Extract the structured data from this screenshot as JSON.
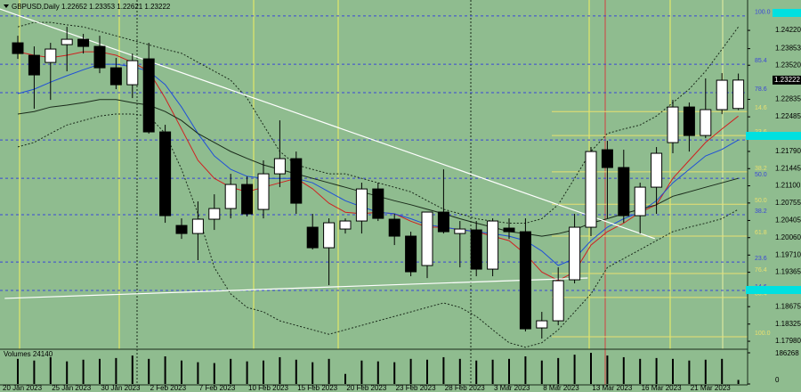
{
  "chart_data": {
    "type": "candlestick",
    "title": "GBPUSD,Daily  1.22652 1.23353 1.22621 1.23222",
    "categories": [
      "20 Jan 2023",
      null,
      null,
      "25 Jan 2023",
      null,
      null,
      "30 Jan 2023",
      null,
      null,
      "2 Feb 2023",
      null,
      null,
      "7 Feb 2023",
      null,
      null,
      "10 Feb 2023",
      null,
      null,
      "15 Feb 2023",
      null,
      null,
      "20 Feb 2023",
      null,
      null,
      "23 Feb 2023",
      null,
      null,
      "28 Feb 2023",
      null,
      null,
      "3 Mar 2023",
      null,
      null,
      "8 Mar 2023",
      null,
      null,
      "13 Mar 2023",
      null,
      null,
      "16 Mar 2023",
      null,
      null,
      "21 Mar 2023",
      null,
      null
    ],
    "open": [
      1.2397,
      1.23719,
      1.23576,
      1.23934,
      1.24041,
      1.23898,
      1.23469,
      1.23129,
      1.23648,
      1.22182,
      1.20304,
      1.20143,
      1.2043,
      1.20644,
      1.21127,
      1.20626,
      1.21341,
      1.21645,
      1.20269,
      1.19857,
      1.20233,
      1.20394,
      1.21037,
      1.2043,
      1.2009,
      1.195,
      1.20573,
      1.20143,
      1.20215,
      1.19428,
      1.20251,
      1.20179,
      1.18248,
      1.18391,
      1.19214,
      1.20269,
      1.21824,
      1.21467,
      1.20501,
      1.21073,
      1.21967,
      1.22682,
      1.2211,
      1.22629,
      1.22652
    ],
    "high": [
      1.24113,
      1.23898,
      1.2397,
      1.24292,
      1.24149,
      1.24113,
      1.23666,
      1.23755,
      1.2397,
      1.22325,
      1.20447,
      1.20787,
      1.2093,
      1.21341,
      1.21288,
      1.2161,
      1.22414,
      1.21788,
      1.20537,
      1.20447,
      1.20447,
      1.21163,
      1.21163,
      1.20537,
      1.20179,
      1.20573,
      1.21431,
      1.20394,
      1.20394,
      1.20447,
      1.20447,
      1.20447,
      1.1857,
      1.19464,
      1.20537,
      1.21878,
      1.22003,
      1.21824,
      1.21163,
      1.21878,
      1.22825,
      1.22772,
      1.23255,
      1.23362,
      1.23353
    ],
    "low": [
      1.23648,
      1.22647,
      1.22825,
      1.23398,
      1.23755,
      1.23362,
      1.2304,
      1.22861,
      1.22146,
      1.20358,
      1.20036,
      1.19607,
      1.20215,
      1.20447,
      1.20483,
      1.20447,
      1.21073,
      1.20537,
      1.19822,
      1.19106,
      1.20143,
      1.20143,
      1.20394,
      1.19911,
      1.19285,
      1.19249,
      1.20143,
      1.19464,
      1.19285,
      1.19285,
      1.20036,
      1.18177,
      1.18034,
      1.18302,
      1.19142,
      1.2009,
      1.20447,
      1.20358,
      1.20143,
      1.20537,
      1.21753,
      1.21788,
      1.22057,
      1.22539,
      1.22621
    ],
    "close": [
      1.23755,
      1.23326,
      1.23845,
      1.24041,
      1.23898,
      1.23469,
      1.23129,
      1.23612,
      1.22182,
      1.20501,
      1.20143,
      1.2043,
      1.20644,
      1.21127,
      1.20537,
      1.21341,
      1.21645,
      1.20751,
      1.19857,
      1.20358,
      1.20394,
      1.21037,
      1.20447,
      1.2009,
      1.19375,
      1.20573,
      1.20179,
      1.20233,
      1.19428,
      1.20394,
      1.20179,
      1.1823,
      1.18391,
      1.19196,
      1.20269,
      1.21788,
      1.21467,
      1.20501,
      1.21073,
      1.21753,
      1.22682,
      1.2211,
      1.22629,
      1.23219,
      1.23222
    ],
    "up_color": "#ffffff",
    "down_color": "#000000",
    "indicators": [
      {
        "color": "#d02020",
        "style": "solid",
        "values": [
          1.2379,
          1.2372,
          1.2367,
          1.2372,
          1.2379,
          1.2379,
          1.2372,
          1.2358,
          1.234,
          1.2286,
          1.2224,
          1.2161,
          1.2125,
          1.2107,
          1.2098,
          1.2107,
          1.2116,
          1.2125,
          1.2104,
          1.2075,
          1.2057,
          1.2054,
          1.2057,
          1.2054,
          1.2039,
          1.2027,
          1.2027,
          1.2022,
          1.2018,
          1.2009,
          1.2,
          1.1973,
          1.1937,
          1.192,
          1.1937,
          1.1991,
          1.2018,
          1.2035,
          1.2057,
          1.2072,
          1.2125,
          1.2161,
          1.2197,
          1.2224,
          1.225
        ]
      },
      {
        "color": "#1f4fd8",
        "style": "solid",
        "values": [
          1.2295,
          1.2304,
          1.2318,
          1.2331,
          1.2343,
          1.2354,
          1.2354,
          1.2349,
          1.234,
          1.2313,
          1.2268,
          1.2215,
          1.217,
          1.2143,
          1.2129,
          1.2125,
          1.2125,
          1.2125,
          1.2116,
          1.2098,
          1.208,
          1.2068,
          1.2057,
          1.2054,
          1.2044,
          1.2032,
          1.2027,
          1.2022,
          1.2018,
          1.2014,
          1.2009,
          1.2,
          1.1979,
          1.195,
          1.1964,
          1.2,
          1.2027,
          1.2044,
          1.2057,
          1.208,
          1.2116,
          1.2143,
          1.217,
          1.2183,
          1.2202
        ]
      },
      {
        "color": "#1a2a1a",
        "style": "solid",
        "values": [
          1.2254,
          1.2259,
          1.2268,
          1.2272,
          1.2277,
          1.2283,
          1.2283,
          1.2277,
          1.2272,
          1.2259,
          1.2241,
          1.2215,
          1.2197,
          1.2179,
          1.2165,
          1.2152,
          1.2143,
          1.2134,
          1.2125,
          1.2116,
          1.2107,
          1.2098,
          1.2089,
          1.208,
          1.2072,
          1.2063,
          1.2054,
          1.2044,
          1.2035,
          1.2027,
          1.2018,
          1.2014,
          1.2009,
          1.2014,
          1.2022,
          1.2035,
          1.2044,
          1.2054,
          1.2063,
          1.2072,
          1.2089,
          1.2098,
          1.2107,
          1.2116,
          1.2125
        ]
      },
      {
        "color": "#1a2a1a",
        "style": "dotted",
        "values": [
          1.2429,
          1.2438,
          1.2438,
          1.2433,
          1.2429,
          1.242,
          1.2411,
          1.2402,
          1.2393,
          1.2384,
          1.2376,
          1.2358,
          1.234,
          1.2322,
          1.2286,
          1.2232,
          1.2179,
          1.2152,
          1.2143,
          1.2134,
          1.2134,
          1.2125,
          1.2116,
          1.2107,
          1.2098,
          1.208,
          1.2063,
          1.2054,
          1.2044,
          1.2039,
          1.2035,
          1.2035,
          1.2044,
          1.2072,
          1.2125,
          1.2179,
          1.2215,
          1.2224,
          1.2232,
          1.225,
          1.2277,
          1.2304,
          1.234,
          1.2384,
          1.2429
        ]
      },
      {
        "color": "#1a2a1a",
        "style": "dotted",
        "values": [
          1.2188,
          1.2197,
          1.2215,
          1.2232,
          1.2241,
          1.225,
          1.2254,
          1.2254,
          1.225,
          1.2215,
          1.2143,
          1.2054,
          1.1946,
          1.1893,
          1.1866,
          1.1857,
          1.1839,
          1.183,
          1.1821,
          1.1812,
          1.1821,
          1.183,
          1.1839,
          1.1848,
          1.1857,
          1.1866,
          1.1875,
          1.1866,
          1.1848,
          1.1821,
          1.1795,
          1.1786,
          1.1795,
          1.1821,
          1.1857,
          1.1893,
          1.1946,
          1.1964,
          1.1982,
          1.2,
          1.2018,
          1.2027,
          1.2035,
          1.2044,
          1.2063
        ]
      }
    ],
    "trendlines": [
      {
        "color": "#ffffff",
        "x": [
          -1.1,
          38.9
        ],
        "y": [
          1.2465,
          1.2004
        ]
      },
      {
        "color": "#ffffff",
        "x": [
          -0.8,
          34.8
        ],
        "y": [
          1.1884,
          1.1925
        ]
      }
    ],
    "fib_levels": [
      {
        "label": "100.0",
        "price": 1.2451,
        "color": "#3a46d8"
      },
      {
        "label": "85.4",
        "price": 1.2354,
        "color": "#3a46d8"
      },
      {
        "label": "78.6",
        "price": 1.2297,
        "color": "#3a46d8"
      },
      {
        "label": "61.8",
        "price": 1.2202,
        "color": "#3a46d8"
      },
      {
        "label": "50.0",
        "price": 1.2125,
        "color": "#3a46d8"
      },
      {
        "label": "38.2",
        "price": 1.2052,
        "color": "#3a46d8"
      },
      {
        "label": "23.6",
        "price": 1.1957,
        "color": "#3a46d8"
      },
      {
        "label": "14.6",
        "price": 1.19,
        "color": "#3a46d8"
      },
      {
        "label": "14.6",
        "price": 1.2259,
        "color": "#e8e070"
      },
      {
        "label": "23.6",
        "price": 1.2211,
        "color": "#e8e070"
      },
      {
        "label": "38.2",
        "price": 1.2138,
        "color": "#e8e070"
      },
      {
        "label": "50.0",
        "price": 1.2073,
        "color": "#e8e070"
      },
      {
        "label": "61.8",
        "price": 1.2009,
        "color": "#e8e070"
      },
      {
        "label": "76.4",
        "price": 1.1934,
        "color": "#e8e070"
      },
      {
        "label": "85.4",
        "price": 1.1886,
        "color": "#e8e070"
      },
      {
        "label": "100.0",
        "price": 1.1807,
        "color": "#e8e070"
      }
    ],
    "current_price": {
      "value": 1.23222,
      "label": "1.23222"
    },
    "ylim": [
      1.1782,
      1.2474
    ],
    "yticks": [
      {
        "value": 1.2422,
        "label": "1.24220"
      },
      {
        "value": 1.23853,
        "label": "1.23853"
      },
      {
        "value": 1.2352,
        "label": "1.23520"
      },
      {
        "value": 1.22835,
        "label": "1.22835"
      },
      {
        "value": 1.22485,
        "label": "1.22485"
      },
      {
        "value": 1.2179,
        "label": "1.21790"
      },
      {
        "value": 1.21445,
        "label": "1.21445"
      },
      {
        "value": 1.211,
        "label": "1.21100"
      },
      {
        "value": 1.20755,
        "label": "1.20755"
      },
      {
        "value": 1.20405,
        "label": "1.20405"
      },
      {
        "value": 1.2006,
        "label": "1.20060"
      },
      {
        "value": 1.1971,
        "label": "1.19710"
      },
      {
        "value": 1.19365,
        "label": "1.19365"
      },
      {
        "value": 1.18675,
        "label": "1.18675"
      },
      {
        "value": 1.18325,
        "label": "1.18325"
      },
      {
        "value": 1.1798,
        "label": "1.17980"
      }
    ],
    "volume": {
      "title": "Volumes 24140",
      "color": "#000000",
      "values": [
        150000,
        140000,
        160000,
        135000,
        145000,
        150000,
        155000,
        170000,
        150000,
        165000,
        140000,
        130000,
        125000,
        150000,
        135000,
        140000,
        160000,
        145000,
        130000,
        150000,
        60000,
        140000,
        135000,
        130000,
        150000,
        145000,
        160000,
        150000,
        140000,
        145000,
        150000,
        165000,
        140000,
        155000,
        175000,
        186268,
        170000,
        160000,
        150000,
        155000,
        150000,
        140000,
        145000,
        150000,
        24140
      ],
      "ylim": [
        0,
        186268
      ],
      "yticks": [
        186268,
        0
      ]
    }
  }
}
